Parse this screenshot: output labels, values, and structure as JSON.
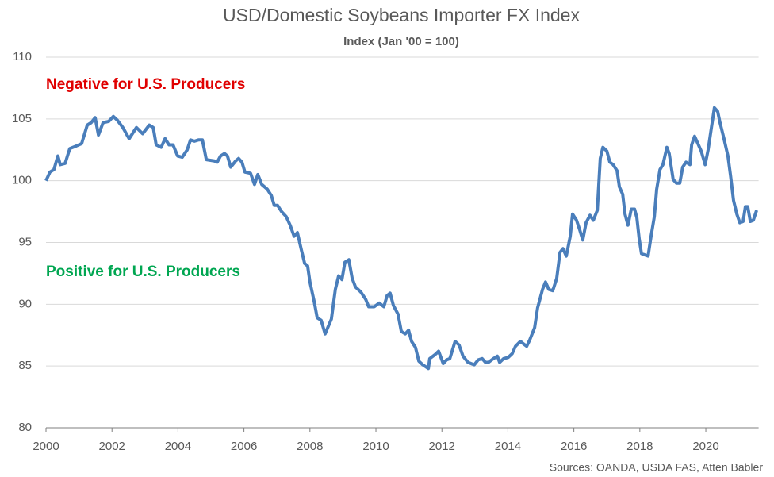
{
  "chart_data": {
    "type": "line",
    "title": "USD/Domestic Soybeans Importer FX Index",
    "subtitle": "Index (Jan '00 = 100)",
    "annotations": [
      {
        "text": "Negative for U.S. Producers",
        "color": "#e00000"
      },
      {
        "text": "Positive for U.S. Producers",
        "color": "#00a651"
      }
    ],
    "source": "Sources: OANDA, USDA FAS, Atten Babler",
    "xlim": [
      2000,
      2021.6
    ],
    "xticks": [
      2000,
      2002,
      2004,
      2006,
      2008,
      2010,
      2012,
      2014,
      2016,
      2018,
      2020
    ],
    "ylim": [
      80,
      110
    ],
    "yticks": [
      80,
      85,
      90,
      95,
      100,
      105,
      110
    ],
    "grid": true,
    "series": [
      {
        "name": "USD/Domestic Soybeans Importer FX Index",
        "color": "#4a7ebb",
        "x": [
          2000.0,
          2000.12,
          2000.24,
          2000.36,
          2000.43,
          2000.58,
          2000.72,
          2000.91,
          2001.08,
          2001.25,
          2001.37,
          2001.49,
          2001.59,
          2001.73,
          2001.9,
          2002.04,
          2002.16,
          2002.33,
          2002.52,
          2002.74,
          2002.93,
          2003.13,
          2003.25,
          2003.34,
          2003.49,
          2003.61,
          2003.73,
          2003.85,
          2003.99,
          2004.13,
          2004.28,
          2004.38,
          2004.5,
          2004.62,
          2004.74,
          2004.86,
          2005.1,
          2005.19,
          2005.29,
          2005.41,
          2005.5,
          2005.6,
          2005.75,
          2005.84,
          2005.94,
          2006.03,
          2006.2,
          2006.32,
          2006.42,
          2006.54,
          2006.71,
          2006.83,
          2006.92,
          2007.02,
          2007.14,
          2007.28,
          2007.4,
          2007.52,
          2007.62,
          2007.74,
          2007.84,
          2007.93,
          2008.0,
          2008.13,
          2008.22,
          2008.34,
          2008.46,
          2008.65,
          2008.77,
          2008.87,
          2008.97,
          2009.06,
          2009.18,
          2009.28,
          2009.38,
          2009.54,
          2009.69,
          2009.78,
          2009.95,
          2010.1,
          2010.24,
          2010.34,
          2010.43,
          2010.53,
          2010.67,
          2010.77,
          2010.89,
          2010.99,
          2011.08,
          2011.2,
          2011.3,
          2011.42,
          2011.59,
          2011.63,
          2011.78,
          2011.9,
          2012.04,
          2012.14,
          2012.24,
          2012.4,
          2012.52,
          2012.64,
          2012.79,
          2012.98,
          2013.1,
          2013.22,
          2013.32,
          2013.41,
          2013.56,
          2013.68,
          2013.75,
          2013.87,
          2014.01,
          2014.13,
          2014.23,
          2014.38,
          2014.47,
          2014.57,
          2014.66,
          2014.81,
          2014.9,
          2015.05,
          2015.14,
          2015.24,
          2015.36,
          2015.48,
          2015.58,
          2015.67,
          2015.77,
          2015.89,
          2015.96,
          2016.08,
          2016.18,
          2016.27,
          2016.37,
          2016.49,
          2016.59,
          2016.71,
          2016.8,
          2016.88,
          2017.0,
          2017.09,
          2017.19,
          2017.31,
          2017.38,
          2017.48,
          2017.55,
          2017.64,
          2017.74,
          2017.84,
          2017.91,
          2017.98,
          2018.05,
          2018.15,
          2018.25,
          2018.34,
          2018.44,
          2018.51,
          2018.61,
          2018.7,
          2018.82,
          2018.89,
          2019.01,
          2019.11,
          2019.21,
          2019.3,
          2019.4,
          2019.52,
          2019.57,
          2019.66,
          2019.76,
          2019.86,
          2019.98,
          2020.07,
          2020.17,
          2020.26,
          2020.36,
          2020.43,
          2020.55,
          2020.67,
          2020.75,
          2020.84,
          2020.94,
          2021.03,
          2021.13,
          2021.2,
          2021.27,
          2021.35,
          2021.44,
          2021.54
        ],
        "values": [
          100.0,
          100.7,
          100.9,
          102.0,
          101.3,
          101.4,
          102.6,
          102.8,
          103.0,
          104.5,
          104.7,
          105.1,
          103.7,
          104.7,
          104.8,
          105.2,
          104.9,
          104.3,
          103.4,
          104.3,
          103.8,
          104.5,
          104.3,
          102.9,
          102.7,
          103.4,
          102.9,
          102.9,
          102.0,
          101.9,
          102.5,
          103.3,
          103.2,
          103.3,
          103.3,
          101.7,
          101.6,
          101.5,
          102.0,
          102.2,
          102.0,
          101.1,
          101.6,
          101.8,
          101.5,
          100.7,
          100.6,
          99.7,
          100.5,
          99.7,
          99.3,
          98.8,
          98.0,
          98.0,
          97.5,
          97.1,
          96.4,
          95.5,
          95.8,
          94.4,
          93.3,
          93.1,
          91.8,
          90.2,
          88.9,
          88.7,
          87.6,
          88.8,
          91.2,
          92.3,
          92.0,
          93.4,
          93.6,
          92.1,
          91.4,
          91.0,
          90.4,
          89.8,
          89.8,
          90.1,
          89.8,
          90.7,
          90.9,
          89.9,
          89.2,
          87.8,
          87.6,
          87.9,
          87.0,
          86.5,
          85.4,
          85.1,
          84.8,
          85.6,
          85.9,
          86.2,
          85.2,
          85.5,
          85.6,
          87.0,
          86.7,
          85.8,
          85.3,
          85.1,
          85.5,
          85.6,
          85.3,
          85.3,
          85.6,
          85.8,
          85.3,
          85.6,
          85.7,
          86.0,
          86.6,
          87.0,
          86.8,
          86.6,
          87.1,
          88.1,
          89.7,
          91.2,
          91.8,
          91.2,
          91.1,
          92.1,
          94.2,
          94.5,
          93.9,
          95.5,
          97.3,
          96.8,
          96.0,
          95.2,
          96.6,
          97.2,
          96.8,
          97.6,
          101.8,
          102.7,
          102.4,
          101.5,
          101.3,
          100.8,
          99.5,
          98.9,
          97.3,
          96.4,
          97.7,
          97.7,
          97.0,
          95.3,
          94.1,
          94.0,
          93.9,
          95.5,
          97.1,
          99.3,
          100.9,
          101.3,
          102.7,
          102.2,
          100.1,
          99.8,
          99.8,
          101.1,
          101.5,
          101.3,
          102.9,
          103.6,
          103.0,
          102.4,
          101.3,
          102.5,
          104.3,
          105.9,
          105.6,
          104.7,
          103.4,
          102.0,
          100.4,
          98.4,
          97.3,
          96.6,
          96.7,
          97.9,
          97.9,
          96.7,
          96.8,
          97.6
        ]
      }
    ]
  }
}
